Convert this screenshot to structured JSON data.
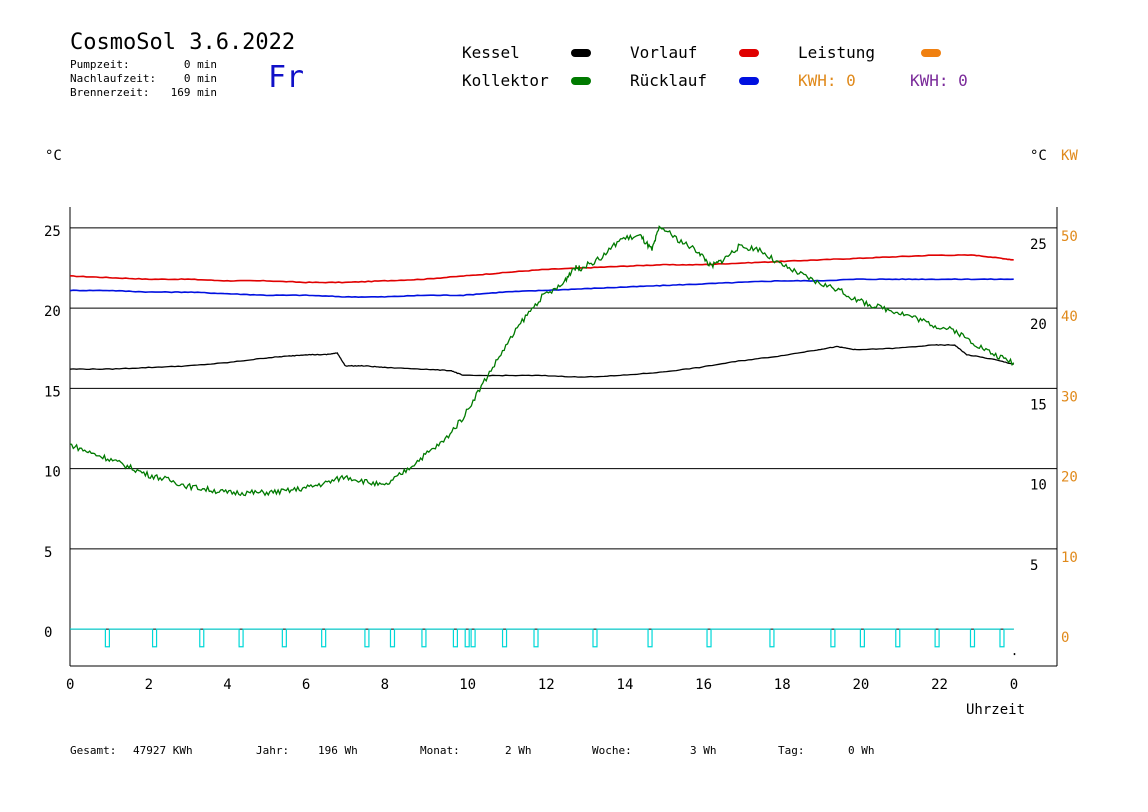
{
  "header": {
    "title": "CosmoSol 3.6.2022",
    "day": "Fr",
    "stats": [
      {
        "label": "Pumpzeit:",
        "value": "0 min"
      },
      {
        "label": "Nachlaufzeit:",
        "value": "0 min"
      },
      {
        "label": "Brennerzeit:",
        "value": "169 min"
      }
    ]
  },
  "legend": {
    "kessel": {
      "label": "Kessel",
      "color": "#000000"
    },
    "kollektor": {
      "label": "Kollektor",
      "color": "#007a00"
    },
    "vorlauf": {
      "label": "Vorlauf",
      "color": "#e00000"
    },
    "ruecklauf": {
      "label": "Rücklauf",
      "color": "#0010e0"
    },
    "leistung": {
      "label": "Leistung",
      "color": "#f08010"
    },
    "kwh_orange": "KWH: 0",
    "kwh_purple": "KWH: 0",
    "kwh_orange_color": "#e08a1c",
    "kwh_purple_color": "#7a2a9a"
  },
  "axes": {
    "left_unit": "°C",
    "right_unit": "°C",
    "right_unit_kw": "KW",
    "xlabel": "Uhrzeit"
  },
  "footer": [
    {
      "label": "Gesamt:",
      "value": "47927 KWh"
    },
    {
      "label": "Jahr:",
      "value": "196 Wh"
    },
    {
      "label": "Monat:",
      "value": "2 Wh"
    },
    {
      "label": "Woche:",
      "value": "3 Wh"
    },
    {
      "label": "Tag:",
      "value": "0 Wh"
    }
  ],
  "chart_data": {
    "type": "line",
    "x_ticks": [
      "0",
      "2",
      "4",
      "6",
      "8",
      "10",
      "12",
      "14",
      "16",
      "18",
      "20",
      "22",
      "0"
    ],
    "x_tick_values": [
      0,
      2,
      4,
      6,
      8,
      10,
      12,
      14,
      16,
      18,
      20,
      22,
      24
    ],
    "left_ticks": [
      "0",
      "5",
      "10",
      "15",
      "20",
      "25"
    ],
    "left_tick_values": [
      0,
      5,
      10,
      15,
      20,
      25
    ],
    "right_ticks": [
      "5",
      "10",
      "15",
      "20",
      "25"
    ],
    "right_tick_values": [
      5,
      10,
      15,
      20,
      25
    ],
    "kw_ticks": [
      "0",
      "10",
      "20",
      "30",
      "40",
      "50"
    ],
    "kw_tick_values": [
      0,
      10,
      20,
      30,
      40,
      50
    ],
    "ylim": [
      -2.3,
      26.3
    ],
    "xlim": [
      0,
      25.1
    ],
    "grid": true,
    "series": [
      {
        "name": "Vorlauf",
        "color": "#e00000",
        "x": [
          0,
          1,
          2,
          3,
          4,
          5,
          6,
          7,
          8,
          9,
          10,
          11,
          12,
          13,
          14,
          15,
          16,
          17,
          18,
          19,
          20,
          21,
          22,
          23,
          23.7,
          24
        ],
        "y": [
          22,
          21.9,
          21.8,
          21.8,
          21.7,
          21.7,
          21.6,
          21.6,
          21.7,
          21.8,
          22,
          22.2,
          22.4,
          22.5,
          22.6,
          22.7,
          22.7,
          22.8,
          22.9,
          23,
          23.1,
          23.2,
          23.3,
          23.3,
          23.1,
          23
        ]
      },
      {
        "name": "Rücklauf",
        "color": "#0010e0",
        "x": [
          0,
          1,
          2,
          3,
          4,
          5,
          6,
          7,
          8,
          9,
          10,
          11,
          12,
          13,
          14,
          15,
          16,
          17,
          18,
          19,
          20,
          21,
          22,
          23,
          24
        ],
        "y": [
          21.1,
          21.1,
          21,
          21,
          20.9,
          20.8,
          20.8,
          20.7,
          20.7,
          20.8,
          20.8,
          21,
          21.1,
          21.2,
          21.3,
          21.4,
          21.5,
          21.6,
          21.7,
          21.7,
          21.8,
          21.8,
          21.8,
          21.8,
          21.8
        ]
      },
      {
        "name": "Kessel",
        "color": "#000000",
        "x": [
          0,
          1,
          2,
          3,
          4,
          5,
          5.5,
          6,
          6.5,
          6.8,
          7,
          7.5,
          8,
          9,
          9.7,
          10,
          11,
          12,
          13,
          14,
          15,
          16,
          17,
          18,
          19,
          19.5,
          20,
          21,
          22,
          22.5,
          22.8,
          23.5,
          24
        ],
        "y": [
          16.2,
          16.2,
          16.3,
          16.4,
          16.6,
          16.9,
          17,
          17.1,
          17.1,
          17.2,
          16.4,
          16.4,
          16.3,
          16.2,
          16.1,
          15.8,
          15.8,
          15.8,
          15.7,
          15.8,
          16,
          16.3,
          16.7,
          17,
          17.4,
          17.6,
          17.4,
          17.5,
          17.7,
          17.7,
          17.1,
          16.8,
          16.5
        ]
      },
      {
        "name": "Kollektor",
        "color": "#007a00",
        "x": [
          0,
          0.5,
          1,
          1.5,
          2,
          2.5,
          3,
          3.5,
          4,
          4.5,
          5,
          5.5,
          6,
          6.5,
          7,
          7.5,
          8,
          8.5,
          9,
          9.5,
          10,
          10.5,
          11,
          11.5,
          12,
          12.5,
          12.8,
          13,
          13.5,
          14,
          14.5,
          14.8,
          15,
          15.5,
          16,
          16.3,
          16.6,
          17,
          17.5,
          18,
          18.5,
          19,
          19.5,
          20,
          20.5,
          21,
          21.5,
          22,
          22.5,
          23,
          23.5,
          24
        ],
        "y": [
          11.5,
          11,
          10.6,
          10.1,
          9.6,
          9.3,
          8.9,
          8.7,
          8.5,
          8.5,
          8.5,
          8.6,
          8.8,
          9.1,
          9.5,
          9.2,
          8.9,
          9.8,
          10.8,
          11.7,
          13.2,
          15.3,
          17.3,
          19.2,
          20.7,
          21.4,
          22.5,
          22.5,
          23.1,
          24.3,
          24.5,
          23.6,
          25.1,
          24.2,
          23.5,
          22.6,
          23,
          23.8,
          23.7,
          22.8,
          22.2,
          21.6,
          21.2,
          20.5,
          20.1,
          19.8,
          19.4,
          18.9,
          18.6,
          17.8,
          17.1,
          16.6
        ]
      }
    ],
    "pump_pulses_h": [
      0.9,
      2.1,
      3.3,
      4.3,
      5.4,
      6.4,
      7.5,
      8.15,
      8.95,
      9.75,
      10.05,
      10.2,
      11.0,
      11.8,
      13.3,
      14.7,
      16.2,
      17.8,
      19.35,
      20.1,
      21.0,
      22.0,
      22.9,
      23.65
    ],
    "pump_color": "#00d8d8"
  }
}
